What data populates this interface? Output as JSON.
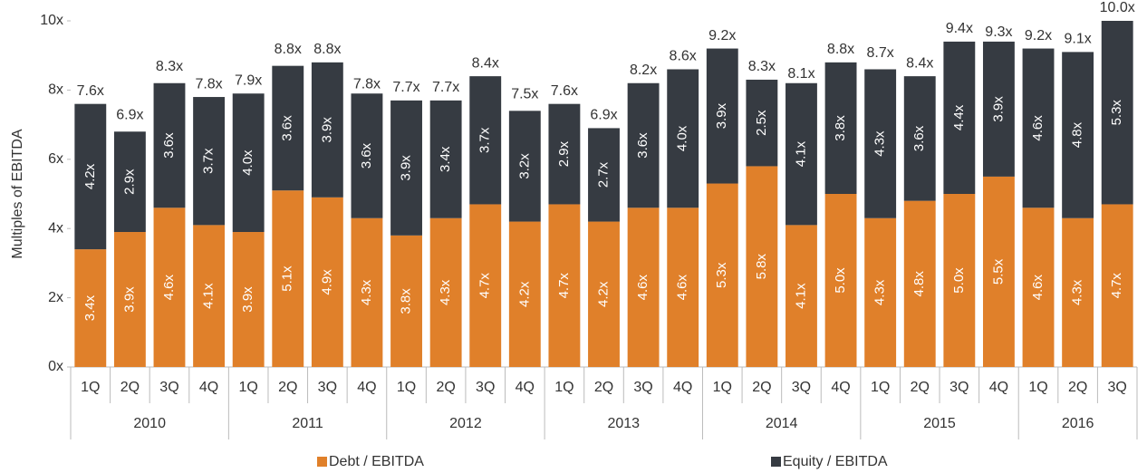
{
  "chart_data": {
    "type": "stacked_bar",
    "y_label": "Multiples of EBITDA",
    "groups": [
      {
        "label": "2010",
        "categories": [
          "1Q",
          "2Q",
          "3Q",
          "4Q"
        ]
      },
      {
        "label": "2011",
        "categories": [
          "1Q",
          "2Q",
          "3Q",
          "4Q"
        ]
      },
      {
        "label": "2012",
        "categories": [
          "1Q",
          "2Q",
          "3Q",
          "4Q"
        ]
      },
      {
        "label": "2013",
        "categories": [
          "1Q",
          "2Q",
          "3Q",
          "4Q"
        ]
      },
      {
        "label": "2014",
        "categories": [
          "1Q",
          "2Q",
          "3Q",
          "4Q"
        ]
      },
      {
        "label": "2015",
        "categories": [
          "1Q",
          "2Q",
          "3Q",
          "4Q"
        ]
      },
      {
        "label": "2016",
        "categories": [
          "1Q",
          "2Q",
          "3Q"
        ]
      }
    ],
    "series": [
      {
        "name": "Debt / EBITDA",
        "color": "#e0802a",
        "values": [
          3.4,
          3.9,
          4.6,
          4.1,
          3.9,
          5.1,
          4.9,
          4.3,
          3.8,
          4.3,
          4.7,
          4.2,
          4.7,
          4.2,
          4.6,
          4.6,
          5.3,
          5.8,
          4.1,
          5.0,
          4.3,
          4.8,
          5.0,
          5.5,
          4.6,
          4.3,
          4.7
        ],
        "value_labels": [
          "3.4x",
          "3.9x",
          "4.6x",
          "4.1x",
          "3.9x",
          "5.1x",
          "4.9x",
          "4.3x",
          "3.8x",
          "4.3x",
          "4.7x",
          "4.2x",
          "4.7x",
          "4.2x",
          "4.6x",
          "4.6x",
          "5.3x",
          "5.8x",
          "4.1x",
          "5.0x",
          "4.3x",
          "4.8x",
          "5.0x",
          "5.5x",
          "4.6x",
          "4.3x",
          "4.7x"
        ]
      },
      {
        "name": "Equity / EBITDA",
        "color": "#363b42",
        "values": [
          4.2,
          2.9,
          3.6,
          3.7,
          4.0,
          3.6,
          3.9,
          3.6,
          3.9,
          3.4,
          3.7,
          3.2,
          2.9,
          2.7,
          3.6,
          4.0,
          3.9,
          2.5,
          4.1,
          3.8,
          4.3,
          3.6,
          4.4,
          3.9,
          4.6,
          4.8,
          5.3
        ],
        "value_labels": [
          "4.2x",
          "2.9x",
          "3.6x",
          "3.7x",
          "4.0x",
          "3.6x",
          "3.9x",
          "3.6x",
          "3.9x",
          "3.4x",
          "3.7x",
          "3.2x",
          "2.9x",
          "2.7x",
          "3.6x",
          "4.0x",
          "3.9x",
          "2.5x",
          "4.1x",
          "3.8x",
          "4.3x",
          "3.6x",
          "4.4x",
          "3.9x",
          "4.6x",
          "4.8x",
          "5.3x"
        ]
      }
    ],
    "totals": [
      7.6,
      6.9,
      8.3,
      7.8,
      7.9,
      8.8,
      8.8,
      7.8,
      7.7,
      7.7,
      8.4,
      7.5,
      7.6,
      6.9,
      8.2,
      8.6,
      9.2,
      8.3,
      8.1,
      8.8,
      8.7,
      8.4,
      9.4,
      9.3,
      9.2,
      9.1,
      10.0
    ],
    "total_labels": [
      "7.6x",
      "6.9x",
      "8.3x",
      "7.8x",
      "7.9x",
      "8.8x",
      "8.8x",
      "7.8x",
      "7.7x",
      "7.7x",
      "8.4x",
      "7.5x",
      "7.6x",
      "6.9x",
      "8.2x",
      "8.6x",
      "9.2x",
      "8.3x",
      "8.1x",
      "8.8x",
      "8.7x",
      "8.4x",
      "9.4x",
      "9.3x",
      "9.2x",
      "9.1x",
      "10.0x"
    ],
    "ylim": [
      0,
      10
    ],
    "yticks": [
      {
        "value": 0,
        "label": "0x"
      },
      {
        "value": 2,
        "label": "2x"
      },
      {
        "value": 4,
        "label": "4x"
      },
      {
        "value": 6,
        "label": "6x"
      },
      {
        "value": 8,
        "label": "8x"
      },
      {
        "value": 10,
        "label": "10x"
      }
    ],
    "grid": false,
    "legend": "bottom"
  }
}
